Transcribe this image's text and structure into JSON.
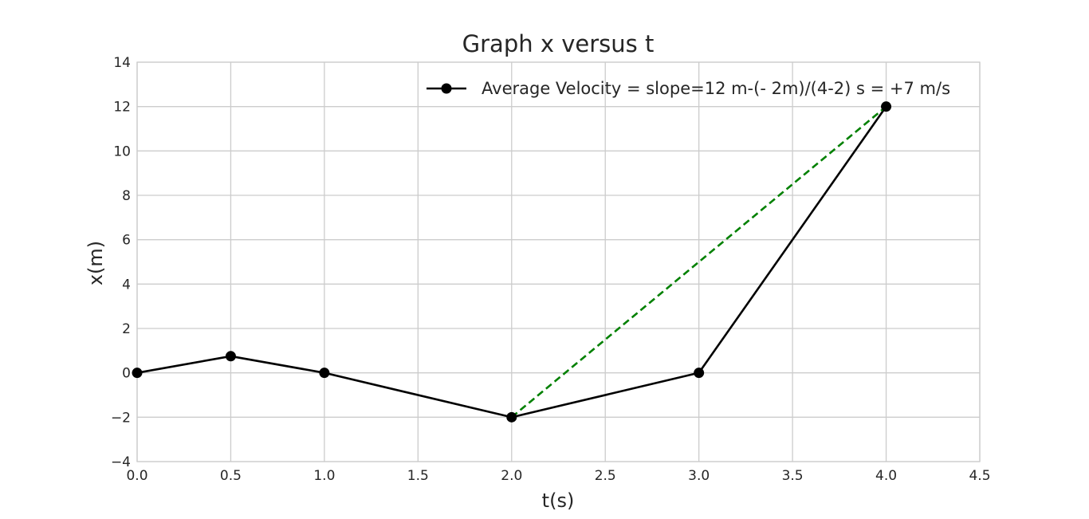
{
  "chart_data": {
    "type": "line",
    "title": "Graph x versus t",
    "xlabel": "t(s)",
    "ylabel": "x(m)",
    "xlim": [
      0.0,
      4.5
    ],
    "ylim": [
      -4,
      14
    ],
    "grid": true,
    "legend_position": "top-right",
    "x_ticks": [
      0.0,
      0.5,
      1.0,
      1.5,
      2.0,
      2.5,
      3.0,
      3.5,
      4.0,
      4.5
    ],
    "x_tick_labels": [
      "0.0",
      "0.5",
      "1.0",
      "1.5",
      "2.0",
      "2.5",
      "3.0",
      "3.5",
      "4.0",
      "4.5"
    ],
    "y_ticks": [
      -4,
      -2,
      0,
      2,
      4,
      6,
      8,
      10,
      12,
      14
    ],
    "y_tick_labels": [
      "−4",
      "−2",
      "0",
      "2",
      "4",
      "6",
      "8",
      "10",
      "12",
      "14"
    ],
    "series": [
      {
        "name": "Average Velocity = slope=12 m-(- 2m)/(4-2) s = +7 m/s",
        "color": "#000000",
        "style": "solid",
        "marker": "circle",
        "x": [
          0.0,
          0.5,
          1.0,
          2.0,
          3.0,
          4.0
        ],
        "y": [
          0,
          0.75,
          0,
          -2,
          0,
          12
        ]
      },
      {
        "color": "#008000",
        "style": "dashed",
        "marker": "none",
        "x": [
          2.0,
          4.0
        ],
        "y": [
          -2,
          12
        ]
      }
    ]
  }
}
